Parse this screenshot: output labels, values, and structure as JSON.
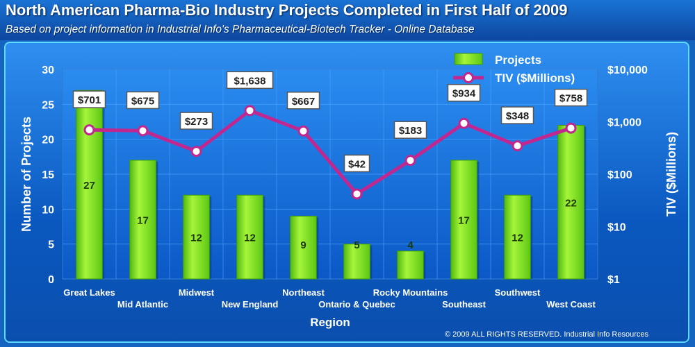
{
  "title": "North American Pharma-Bio Industry Projects Completed in First Half of 2009",
  "subtitle": "Based on project information in Industrial Info's Pharmaceutical-Biotech Tracker - Online Database",
  "copyright": "© 2009 ALL RIGHTS RESERVED. Industrial Info Resources",
  "colors": {
    "bar": "#7ee62e",
    "bar_dark": "#3d9a08",
    "line": "#c2268f",
    "marker_fill": "#ffffff",
    "grid": "#4aa3ff",
    "background": "#1565c0"
  },
  "chart_data": {
    "type": "bar",
    "xlabel": "Region",
    "ylabel": "Number of Projects",
    "y2label": "TIV ($Millions)",
    "ylim": [
      0,
      30
    ],
    "yticks": [
      "0",
      "5",
      "10",
      "15",
      "20",
      "25",
      "30"
    ],
    "y2scale": "log",
    "y2lim": [
      1,
      10000
    ],
    "y2ticks": [
      "$1",
      "$10",
      "$100",
      "$1,000",
      "$10,000"
    ],
    "grid": true,
    "legend": "top-right",
    "categories": [
      "Great Lakes",
      "Mid Atlantic",
      "Midwest",
      "New England",
      "Northeast",
      "Ontario & Quebec",
      "Rocky Mountains",
      "Southeast",
      "Southwest",
      "West Coast"
    ],
    "series": [
      {
        "name": "Projects",
        "type": "bar",
        "axis": "left",
        "values": [
          27,
          17,
          12,
          12,
          9,
          5,
          4,
          17,
          12,
          22
        ],
        "labels": [
          "27",
          "17",
          "12",
          "12",
          "9",
          "5",
          "4",
          "17",
          "12",
          "22"
        ]
      },
      {
        "name": "TIV ($Millions)",
        "type": "line",
        "axis": "right",
        "values": [
          701,
          675,
          273,
          1638,
          667,
          42,
          183,
          934,
          348,
          758
        ],
        "labels": [
          "$701",
          "$675",
          "$273",
          "$1,638",
          "$667",
          "$42",
          "$183",
          "$934",
          "$348",
          "$758"
        ]
      }
    ]
  }
}
